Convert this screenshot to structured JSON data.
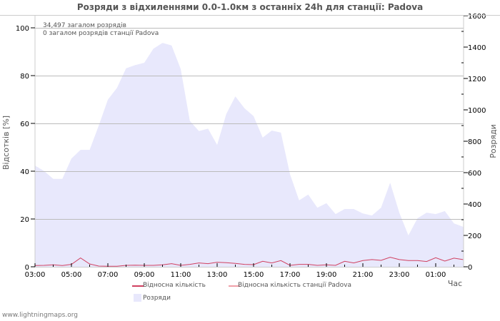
{
  "title": "Розряди з відхиленнями 0.0-1.0км з останніх 24h для станції: Padova",
  "info": {
    "total_strokes": "34,497 загалом розрядів",
    "station_strokes": "0 загалом розрядів станції Padova"
  },
  "axes": {
    "left_label": "Відсотків   [%]",
    "right_label": "Розряди",
    "x_label": "Час",
    "left_ticks": [
      "0",
      "20",
      "40",
      "60",
      "80",
      "100"
    ],
    "right_ticks": [
      "0",
      "200",
      "400",
      "600",
      "800",
      "1000",
      "1200",
      "1400",
      "1600"
    ],
    "x_ticks": [
      "03:00",
      "05:00",
      "07:00",
      "09:00",
      "11:00",
      "13:00",
      "15:00",
      "17:00",
      "19:00",
      "21:00",
      "23:00",
      "01:00"
    ]
  },
  "legend": {
    "relative": "Відносна кількість",
    "relative_station": "Відносна кількість станції Padova",
    "strokes": "Розряди"
  },
  "colors": {
    "area_fill": "#e8e8fc",
    "relative_line": "#d04060",
    "relative_station_line": "#f0a0a8",
    "grid": "#bbbbbb"
  },
  "footer": "www.lightningmaps.org",
  "chart_data": {
    "type": "area",
    "title": "Розряди з відхиленнями 0.0-1.0км з останніх 24h для станції: Padova",
    "xlabel": "Час",
    "ylabel": "Відсотків [%]",
    "y2label": "Розряди",
    "ylim": [
      0,
      100
    ],
    "y2lim": [
      0,
      1600
    ],
    "grid": true,
    "legend_position": "bottom",
    "x": [
      "03:00",
      "03:30",
      "04:00",
      "04:30",
      "05:00",
      "05:30",
      "06:00",
      "06:30",
      "07:00",
      "07:30",
      "08:00",
      "08:30",
      "09:00",
      "09:30",
      "10:00",
      "10:30",
      "11:00",
      "11:30",
      "12:00",
      "12:30",
      "13:00",
      "13:30",
      "14:00",
      "14:30",
      "15:00",
      "15:30",
      "16:00",
      "16:30",
      "17:00",
      "17:30",
      "18:00",
      "18:30",
      "19:00",
      "19:30",
      "20:00",
      "20:30",
      "21:00",
      "21:30",
      "22:00",
      "22:30",
      "23:00",
      "23:30",
      "00:00",
      "00:30",
      "01:00",
      "01:30",
      "02:00",
      "02:30"
    ],
    "series": [
      {
        "name": "Розряди",
        "axis": "right",
        "type": "area",
        "values": [
          645,
          610,
          560,
          560,
          690,
          745,
          745,
          900,
          1065,
          1140,
          1265,
          1285,
          1300,
          1390,
          1427,
          1410,
          1260,
          930,
          865,
          880,
          777,
          973,
          1086,
          1010,
          960,
          823,
          868,
          855,
          590,
          423,
          460,
          377,
          405,
          336,
          368,
          368,
          340,
          327,
          377,
          536,
          345,
          200,
          309,
          345,
          336,
          355,
          277,
          255
        ]
      },
      {
        "name": "Відносна кількість",
        "axis": "left",
        "type": "line",
        "values": [
          0.5,
          0.6,
          0.8,
          0.5,
          1.0,
          3.7,
          1.2,
          0.3,
          0.2,
          0.2,
          0.6,
          0.7,
          0.6,
          0.6,
          0.8,
          1.3,
          0.6,
          1.0,
          1.6,
          1.3,
          1.9,
          1.7,
          1.4,
          1.0,
          0.9,
          2.3,
          1.6,
          2.6,
          0.6,
          1.0,
          1.0,
          0.6,
          0.8,
          0.6,
          2.3,
          1.6,
          2.6,
          3.0,
          2.7,
          4.0,
          3.0,
          2.6,
          2.6,
          2.2,
          3.8,
          2.4,
          3.6,
          3.0
        ]
      },
      {
        "name": "Відносна кількість станції Padova",
        "axis": "left",
        "type": "line",
        "values": []
      }
    ]
  }
}
